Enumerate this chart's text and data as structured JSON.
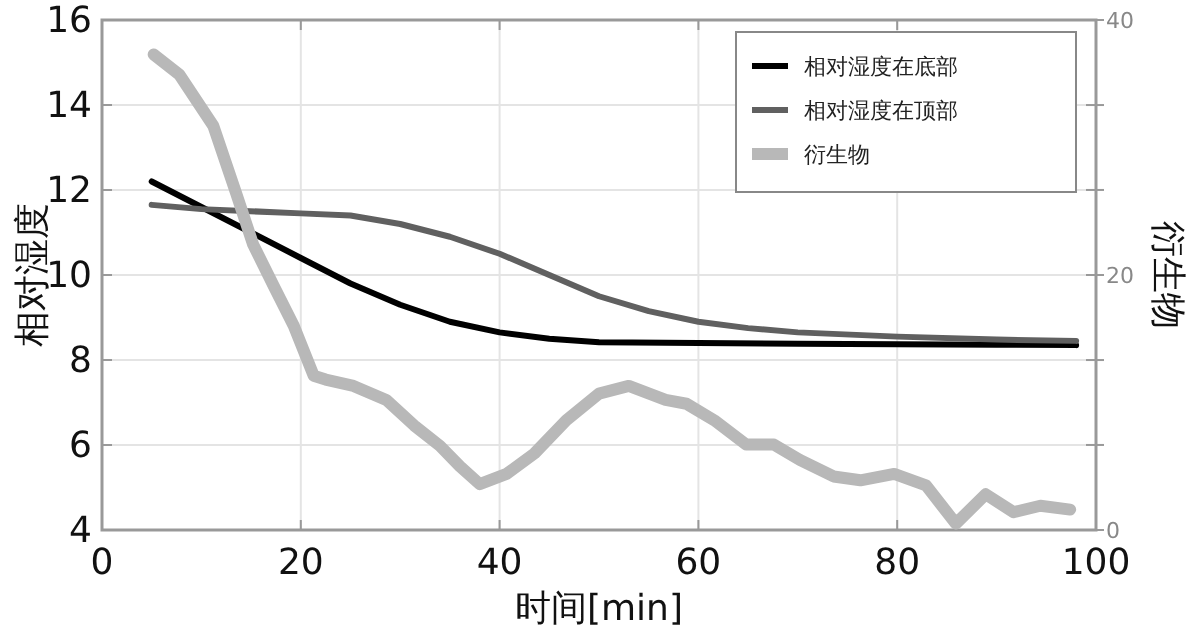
{
  "chart_data": {
    "type": "line",
    "xlabel": "时间[min]",
    "ylabel": "相对湿度",
    "y2label": "衍生物",
    "xlim": [
      0,
      100
    ],
    "xticks": [
      0,
      20,
      40,
      60,
      80,
      100
    ],
    "ylim": [
      4,
      16
    ],
    "yticks": [
      4,
      6,
      8,
      10,
      12,
      14,
      16
    ],
    "y2lim": [
      0,
      40
    ],
    "y2ticks": [
      0,
      {
        "value": 6.67,
        "label": null
      },
      {
        "value": 13.33,
        "label": null
      },
      20,
      {
        "value": 26.67,
        "label": null
      },
      {
        "value": 33.33,
        "label": null
      },
      40
    ],
    "grid": true,
    "legend": "top right",
    "series": [
      {
        "name": "相对湿度在底部",
        "color": "#000000",
        "x": [
          5,
          10,
          15,
          20,
          25,
          30,
          35,
          40,
          45,
          50,
          60,
          70,
          80,
          90,
          98
        ],
        "values": [
          12.2,
          11.6,
          11.0,
          10.4,
          9.8,
          9.3,
          8.9,
          8.65,
          8.5,
          8.42,
          8.4,
          8.38,
          8.37,
          8.36,
          8.35
        ]
      },
      {
        "name": "相对湿度在顶部",
        "color": "#606060",
        "x": [
          5,
          10,
          20,
          25,
          30,
          35,
          40,
          45,
          50,
          55,
          60,
          65,
          70,
          80,
          90,
          98
        ],
        "values": [
          11.65,
          11.55,
          11.45,
          11.4,
          11.2,
          10.9,
          10.5,
          10.0,
          9.5,
          9.15,
          8.9,
          8.75,
          8.65,
          8.55,
          8.48,
          8.45
        ]
      },
      {
        "name": "衍生物",
        "color": "#b8b8b8",
        "axis": "y2",
        "x": [
          5.2,
          7.8,
          11.2,
          13.5,
          15.2,
          17.3,
          19.3,
          21.3,
          22.5,
          25.3,
          28.6,
          31.4,
          34,
          36,
          38,
          40.7,
          43.5,
          46.7,
          50,
          53,
          56.7,
          58.8,
          61.6,
          64.8,
          67.6,
          70.2,
          73.6,
          76.3,
          79.7,
          82.9,
          85.9,
          88.9,
          91.7,
          94.4,
          97.4
        ],
        "values": [
          37.3,
          35.7,
          31.7,
          26.4,
          22.4,
          19.1,
          16.0,
          12.1,
          11.8,
          11.3,
          10.2,
          8.2,
          6.6,
          5.0,
          3.6,
          4.4,
          6.0,
          8.6,
          10.7,
          11.3,
          10.2,
          9.9,
          8.6,
          6.7,
          6.7,
          5.5,
          4.2,
          3.9,
          4.4,
          3.5,
          0.5,
          2.8,
          1.4,
          1.9,
          1.6
        ]
      }
    ]
  }
}
